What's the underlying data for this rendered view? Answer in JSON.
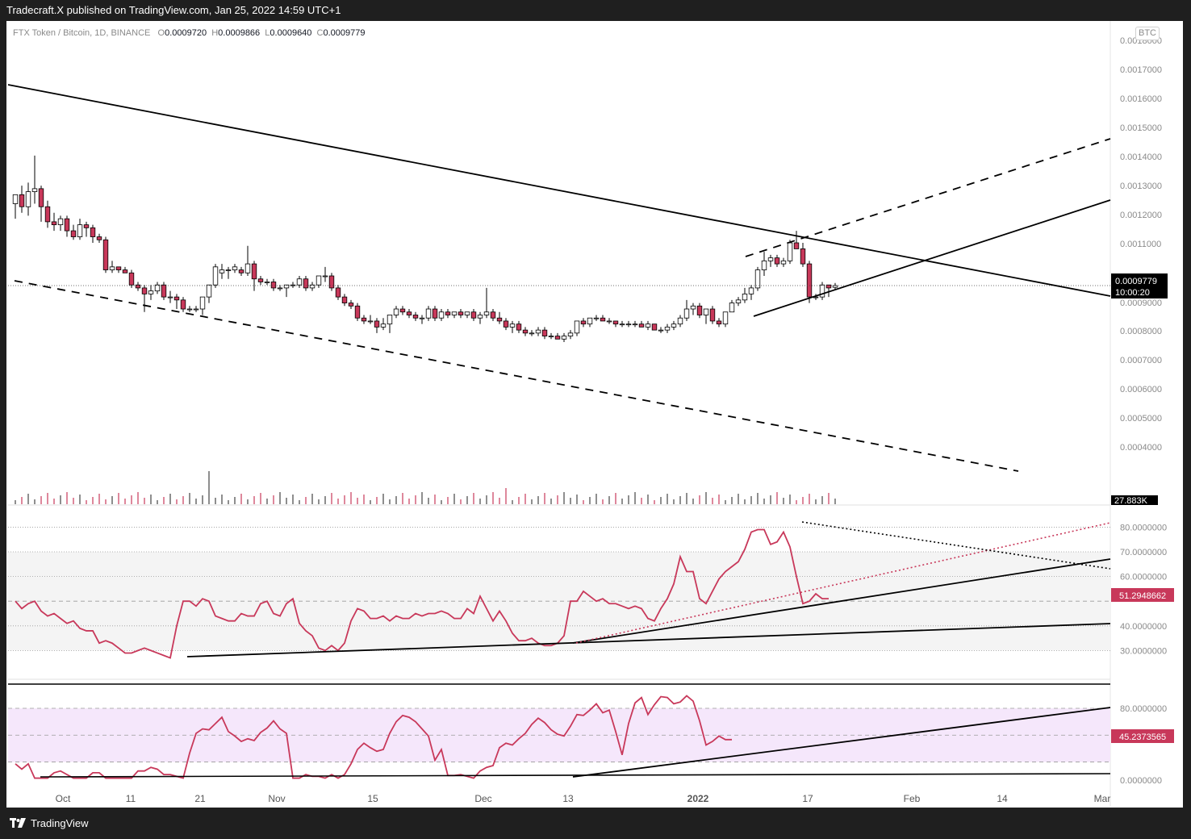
{
  "header": {
    "publisher_text": "Tradecraft.X published on TradingView.com, Jan 25, 2022 14:59 UTC+1"
  },
  "symbol_legend": {
    "title": "FTX Token / Bitcoin, 1D, BINANCE",
    "o_label": "O",
    "o_value": "0.0009720",
    "h_label": "H",
    "h_value": "0.0009866",
    "l_label": "L",
    "l_value": "0.0009640",
    "c_label": "C",
    "c_value": "0.0009779"
  },
  "currency_badge": "BTC",
  "footer": {
    "brand": "TradingView"
  },
  "colors": {
    "up_body": "#ffffff",
    "down_body": "#c8385a",
    "candle_outline": "#000000",
    "rsi_line": "#c8385a",
    "rsi_band": "#f4f4f4",
    "stoch_band": "#f5e7fb",
    "badge_bg": "#000000",
    "rsi_badge_bg": "#c8385a"
  },
  "chart_data": [
    {
      "type": "candlestick",
      "title": "FTX Token / Bitcoin, 1D, BINANCE",
      "x_tick_labels": [
        "Oct",
        "11",
        "21",
        "Nov",
        "15",
        "Dec",
        "13",
        "2022",
        "17",
        "Feb",
        "14",
        "Mar"
      ],
      "y_tick_labels": [
        "0.0018000",
        "0.0017000",
        "0.0016000",
        "0.0015000",
        "0.0014000",
        "0.0013000",
        "0.0012000",
        "0.0011000",
        "0.0009000",
        "0.0008000",
        "0.0007000",
        "0.0006000",
        "0.0005000",
        "0.0004000"
      ],
      "ylim": [
        0.00031,
        0.00182
      ],
      "bar_count": 129,
      "last_price_label": "0.0009779",
      "countdown_label": "10:00:20",
      "volume_label": "27.883K",
      "candles": [
        {
          "o": 0.00125,
          "h": 0.00128,
          "l": 0.0012,
          "c": 0.00128
        },
        {
          "o": 0.00128,
          "h": 0.00131,
          "l": 0.00122,
          "c": 0.00124
        },
        {
          "o": 0.00124,
          "h": 0.00132,
          "l": 0.00121,
          "c": 0.00129
        },
        {
          "o": 0.00129,
          "h": 0.00141,
          "l": 0.00125,
          "c": 0.0013
        },
        {
          "o": 0.0013,
          "h": 0.00131,
          "l": 0.00119,
          "c": 0.00124
        },
        {
          "o": 0.00124,
          "h": 0.00126,
          "l": 0.00117,
          "c": 0.00119
        },
        {
          "o": 0.00119,
          "h": 0.00122,
          "l": 0.00116,
          "c": 0.00118
        },
        {
          "o": 0.00118,
          "h": 0.00121,
          "l": 0.00116,
          "c": 0.0012
        },
        {
          "o": 0.0012,
          "h": 0.00121,
          "l": 0.00114,
          "c": 0.00116
        },
        {
          "o": 0.00116,
          "h": 0.00118,
          "l": 0.00113,
          "c": 0.00114
        },
        {
          "o": 0.00114,
          "h": 0.0012,
          "l": 0.00113,
          "c": 0.00118
        },
        {
          "o": 0.00118,
          "h": 0.00119,
          "l": 0.00114,
          "c": 0.00117
        },
        {
          "o": 0.00117,
          "h": 0.00118,
          "l": 0.00112,
          "c": 0.00114
        },
        {
          "o": 0.00114,
          "h": 0.00115,
          "l": 0.00112,
          "c": 0.00113
        },
        {
          "o": 0.00113,
          "h": 0.00114,
          "l": 0.00102,
          "c": 0.00103
        },
        {
          "o": 0.00103,
          "h": 0.00106,
          "l": 0.00102,
          "c": 0.00104
        },
        {
          "o": 0.00104,
          "h": 0.00104,
          "l": 0.00102,
          "c": 0.00103
        },
        {
          "o": 0.00103,
          "h": 0.00104,
          "l": 0.00102,
          "c": 0.00102
        },
        {
          "o": 0.00102,
          "h": 0.00103,
          "l": 0.00097,
          "c": 0.00098
        },
        {
          "o": 0.00098,
          "h": 0.00099,
          "l": 0.00096,
          "c": 0.00097
        },
        {
          "o": 0.00097,
          "h": 0.00098,
          "l": 0.00089,
          "c": 0.00095
        },
        {
          "o": 0.00095,
          "h": 0.00098,
          "l": 0.00093,
          "c": 0.00096
        },
        {
          "o": 0.00096,
          "h": 0.00099,
          "l": 0.00095,
          "c": 0.00098
        },
        {
          "o": 0.00098,
          "h": 0.00099,
          "l": 0.00093,
          "c": 0.00094
        },
        {
          "o": 0.00094,
          "h": 0.00096,
          "l": 0.00092,
          "c": 0.00094
        },
        {
          "o": 0.00094,
          "h": 0.00095,
          "l": 0.0009,
          "c": 0.00093
        },
        {
          "o": 0.00093,
          "h": 0.00094,
          "l": 0.00089,
          "c": 0.0009
        },
        {
          "o": 0.0009,
          "h": 0.00091,
          "l": 0.00089,
          "c": 0.0009
        },
        {
          "o": 0.0009,
          "h": 0.00091,
          "l": 0.00089,
          "c": 0.0009
        },
        {
          "o": 0.0009,
          "h": 0.00094,
          "l": 0.00088,
          "c": 0.00094
        },
        {
          "o": 0.00094,
          "h": 0.00098,
          "l": 0.00092,
          "c": 0.00098
        },
        {
          "o": 0.00098,
          "h": 0.00105,
          "l": 0.00097,
          "c": 0.00104
        },
        {
          "o": 0.00102,
          "h": 0.00105,
          "l": 0.001,
          "c": 0.00103
        },
        {
          "o": 0.00103,
          "h": 0.00104,
          "l": 0.001,
          "c": 0.00103
        },
        {
          "o": 0.00103,
          "h": 0.00105,
          "l": 0.00102,
          "c": 0.00104
        },
        {
          "o": 0.00103,
          "h": 0.00104,
          "l": 0.00101,
          "c": 0.00102
        },
        {
          "o": 0.00102,
          "h": 0.00111,
          "l": 0.00101,
          "c": 0.00105
        },
        {
          "o": 0.00105,
          "h": 0.00106,
          "l": 0.00096,
          "c": 0.001
        },
        {
          "o": 0.001,
          "h": 0.00101,
          "l": 0.00098,
          "c": 0.00099
        },
        {
          "o": 0.00099,
          "h": 0.001,
          "l": 0.00098,
          "c": 0.00099
        },
        {
          "o": 0.00099,
          "h": 0.001,
          "l": 0.00096,
          "c": 0.00097
        },
        {
          "o": 0.00097,
          "h": 0.00098,
          "l": 0.00096,
          "c": 0.00097
        },
        {
          "o": 0.00097,
          "h": 0.00098,
          "l": 0.00094,
          "c": 0.00098
        },
        {
          "o": 0.00098,
          "h": 0.00099,
          "l": 0.00097,
          "c": 0.00098
        },
        {
          "o": 0.00098,
          "h": 0.00101,
          "l": 0.00097,
          "c": 0.001
        },
        {
          "o": 0.001,
          "h": 0.00101,
          "l": 0.00096,
          "c": 0.00097
        },
        {
          "o": 0.00097,
          "h": 0.00099,
          "l": 0.00096,
          "c": 0.00098
        },
        {
          "o": 0.00098,
          "h": 0.00101,
          "l": 0.00097,
          "c": 0.00101
        },
        {
          "o": 0.00101,
          "h": 0.00104,
          "l": 0.00099,
          "c": 0.00101
        },
        {
          "o": 0.00101,
          "h": 0.00102,
          "l": 0.00096,
          "c": 0.00097
        },
        {
          "o": 0.00097,
          "h": 0.00098,
          "l": 0.00093,
          "c": 0.00094
        },
        {
          "o": 0.00094,
          "h": 0.00095,
          "l": 0.00091,
          "c": 0.00092
        },
        {
          "o": 0.00092,
          "h": 0.00093,
          "l": 0.0009,
          "c": 0.00091
        },
        {
          "o": 0.00091,
          "h": 0.00092,
          "l": 0.00086,
          "c": 0.00087
        },
        {
          "o": 0.00087,
          "h": 0.00088,
          "l": 0.00085,
          "c": 0.00086
        },
        {
          "o": 0.00086,
          "h": 0.00088,
          "l": 0.00085,
          "c": 0.00086
        },
        {
          "o": 0.00086,
          "h": 0.00087,
          "l": 0.00082,
          "c": 0.00084
        },
        {
          "o": 0.00084,
          "h": 0.00087,
          "l": 0.00083,
          "c": 0.00085
        },
        {
          "o": 0.00085,
          "h": 0.00088,
          "l": 0.00082,
          "c": 0.00088
        },
        {
          "o": 0.00088,
          "h": 0.00091,
          "l": 0.00087,
          "c": 0.0009
        },
        {
          "o": 0.0009,
          "h": 0.00091,
          "l": 0.00088,
          "c": 0.00089
        },
        {
          "o": 0.00089,
          "h": 0.0009,
          "l": 0.00087,
          "c": 0.00088
        },
        {
          "o": 0.00088,
          "h": 0.00089,
          "l": 0.00086,
          "c": 0.00087
        },
        {
          "o": 0.00087,
          "h": 0.00088,
          "l": 0.00085,
          "c": 0.00087
        },
        {
          "o": 0.00087,
          "h": 0.00091,
          "l": 0.00086,
          "c": 0.0009
        },
        {
          "o": 0.0009,
          "h": 0.00091,
          "l": 0.00086,
          "c": 0.00087
        },
        {
          "o": 0.00087,
          "h": 0.0009,
          "l": 0.00086,
          "c": 0.00089
        },
        {
          "o": 0.00089,
          "h": 0.0009,
          "l": 0.00087,
          "c": 0.00088
        },
        {
          "o": 0.00088,
          "h": 0.00089,
          "l": 0.00087,
          "c": 0.00089
        },
        {
          "o": 0.00089,
          "h": 0.0009,
          "l": 0.00087,
          "c": 0.00088
        },
        {
          "o": 0.00088,
          "h": 0.00089,
          "l": 0.00087,
          "c": 0.00089
        },
        {
          "o": 0.00089,
          "h": 0.0009,
          "l": 0.00086,
          "c": 0.00087
        },
        {
          "o": 0.00087,
          "h": 0.00089,
          "l": 0.00085,
          "c": 0.00088
        },
        {
          "o": 0.00088,
          "h": 0.00097,
          "l": 0.00087,
          "c": 0.00089
        },
        {
          "o": 0.00089,
          "h": 0.0009,
          "l": 0.00086,
          "c": 0.00087
        },
        {
          "o": 0.00087,
          "h": 0.00089,
          "l": 0.00085,
          "c": 0.00086
        },
        {
          "o": 0.00086,
          "h": 0.00087,
          "l": 0.00083,
          "c": 0.00084
        },
        {
          "o": 0.00084,
          "h": 0.00086,
          "l": 0.00082,
          "c": 0.00085
        },
        {
          "o": 0.00085,
          "h": 0.00086,
          "l": 0.00082,
          "c": 0.00083
        },
        {
          "o": 0.00083,
          "h": 0.00084,
          "l": 0.00081,
          "c": 0.00082
        },
        {
          "o": 0.00082,
          "h": 0.00083,
          "l": 0.00081,
          "c": 0.00082
        },
        {
          "o": 0.00082,
          "h": 0.00084,
          "l": 0.00081,
          "c": 0.00083
        },
        {
          "o": 0.00083,
          "h": 0.00084,
          "l": 0.0008,
          "c": 0.00081
        },
        {
          "o": 0.00081,
          "h": 0.00082,
          "l": 0.0008,
          "c": 0.00081
        },
        {
          "o": 0.00081,
          "h": 0.00082,
          "l": 0.0008,
          "c": 0.0008
        },
        {
          "o": 0.0008,
          "h": 0.00082,
          "l": 0.00079,
          "c": 0.00081
        },
        {
          "o": 0.00081,
          "h": 0.00083,
          "l": 0.0008,
          "c": 0.00082
        },
        {
          "o": 0.00082,
          "h": 0.00086,
          "l": 0.00081,
          "c": 0.00086
        },
        {
          "o": 0.00086,
          "h": 0.00087,
          "l": 0.00084,
          "c": 0.00085
        },
        {
          "o": 0.00085,
          "h": 0.00087,
          "l": 0.00084,
          "c": 0.00087
        },
        {
          "o": 0.00087,
          "h": 0.00088,
          "l": 0.00086,
          "c": 0.00087
        },
        {
          "o": 0.00087,
          "h": 0.00088,
          "l": 0.00086,
          "c": 0.00086
        },
        {
          "o": 0.00086,
          "h": 0.00087,
          "l": 0.00085,
          "c": 0.00086
        },
        {
          "o": 0.00086,
          "h": 0.00086,
          "l": 0.00084,
          "c": 0.00085
        },
        {
          "o": 0.00085,
          "h": 0.00086,
          "l": 0.00084,
          "c": 0.00085
        },
        {
          "o": 0.00085,
          "h": 0.00086,
          "l": 0.00084,
          "c": 0.00085
        },
        {
          "o": 0.00085,
          "h": 0.00086,
          "l": 0.00084,
          "c": 0.00085
        },
        {
          "o": 0.00085,
          "h": 0.00086,
          "l": 0.00084,
          "c": 0.00084
        },
        {
          "o": 0.00084,
          "h": 0.00086,
          "l": 0.00083,
          "c": 0.00085
        },
        {
          "o": 0.00085,
          "h": 0.00085,
          "l": 0.00083,
          "c": 0.00083
        },
        {
          "o": 0.00083,
          "h": 0.00084,
          "l": 0.00082,
          "c": 0.00083
        },
        {
          "o": 0.00083,
          "h": 0.00085,
          "l": 0.00082,
          "c": 0.00084
        },
        {
          "o": 0.00084,
          "h": 0.00086,
          "l": 0.00083,
          "c": 0.00085
        },
        {
          "o": 0.00085,
          "h": 0.00088,
          "l": 0.00084,
          "c": 0.00087
        },
        {
          "o": 0.00087,
          "h": 0.00093,
          "l": 0.00086,
          "c": 0.0009
        },
        {
          "o": 0.0009,
          "h": 0.00092,
          "l": 0.00088,
          "c": 0.00091
        },
        {
          "o": 0.00091,
          "h": 0.00092,
          "l": 0.00087,
          "c": 0.00088
        },
        {
          "o": 0.00088,
          "h": 0.0009,
          "l": 0.00085,
          "c": 0.0009
        },
        {
          "o": 0.0009,
          "h": 0.00091,
          "l": 0.00085,
          "c": 0.00086
        },
        {
          "o": 0.00086,
          "h": 0.00087,
          "l": 0.00084,
          "c": 0.00085
        },
        {
          "o": 0.00085,
          "h": 0.00089,
          "l": 0.00084,
          "c": 0.00089
        },
        {
          "o": 0.00089,
          "h": 0.00093,
          "l": 0.00089,
          "c": 0.00092
        },
        {
          "o": 0.00092,
          "h": 0.00094,
          "l": 0.00091,
          "c": 0.00093
        },
        {
          "o": 0.00093,
          "h": 0.00097,
          "l": 0.00092,
          "c": 0.00095
        },
        {
          "o": 0.00095,
          "h": 0.00098,
          "l": 0.00093,
          "c": 0.00097
        },
        {
          "o": 0.00097,
          "h": 0.00104,
          "l": 0.00096,
          "c": 0.00103
        },
        {
          "o": 0.00103,
          "h": 0.00109,
          "l": 0.00101,
          "c": 0.00106
        },
        {
          "o": 0.00106,
          "h": 0.00108,
          "l": 0.00104,
          "c": 0.00107
        },
        {
          "o": 0.00107,
          "h": 0.00108,
          "l": 0.00104,
          "c": 0.00105
        },
        {
          "o": 0.00105,
          "h": 0.00107,
          "l": 0.00104,
          "c": 0.00106
        },
        {
          "o": 0.00106,
          "h": 0.00113,
          "l": 0.00105,
          "c": 0.00112
        },
        {
          "o": 0.00112,
          "h": 0.00116,
          "l": 0.0011,
          "c": 0.0011
        },
        {
          "o": 0.0011,
          "h": 0.00112,
          "l": 0.00104,
          "c": 0.00105
        },
        {
          "o": 0.00105,
          "h": 0.00106,
          "l": 0.00092,
          "c": 0.00094
        },
        {
          "o": 0.00094,
          "h": 0.00095,
          "l": 0.00093,
          "c": 0.00094
        },
        {
          "o": 0.00094,
          "h": 0.00099,
          "l": 0.00093,
          "c": 0.00098
        },
        {
          "o": 0.00098,
          "h": 0.00098,
          "l": 0.00094,
          "c": 0.00097
        },
        {
          "o": 0.000972,
          "h": 0.0009866,
          "l": 0.000964,
          "c": 0.0009779
        }
      ]
    },
    {
      "type": "line",
      "title": "RSI",
      "y_tick_labels": [
        "80.0000000",
        "70.0000000",
        "60.0000000",
        "40.0000000",
        "30.0000000"
      ],
      "ylim": [
        20,
        87
      ],
      "bands": {
        "upper": 70,
        "middle": 50,
        "lower": 30
      },
      "last_value_label": "51.2948662",
      "values": [
        50,
        47,
        49,
        50,
        46,
        44,
        45,
        43,
        41,
        42,
        39,
        38,
        38,
        33,
        34,
        33,
        31,
        29,
        29,
        30,
        31,
        30,
        29,
        28,
        27,
        40,
        50,
        50,
        48,
        51,
        50,
        44,
        43,
        42,
        42,
        45,
        44,
        44,
        49,
        50,
        45,
        44,
        49,
        51,
        41,
        38,
        36,
        31,
        30,
        32,
        30,
        33,
        42,
        47,
        46,
        43,
        43,
        44,
        42,
        44,
        43,
        43,
        45,
        44,
        45,
        45,
        46,
        45,
        43,
        43,
        47,
        45,
        52,
        47,
        42,
        46,
        42,
        37,
        34,
        34,
        35,
        33,
        32,
        32,
        33,
        36,
        50,
        50,
        54,
        52,
        50,
        51,
        49,
        49,
        48,
        47,
        48,
        47,
        43,
        42,
        47,
        51,
        57,
        68,
        62,
        62,
        51,
        49,
        54,
        59,
        62,
        64,
        66,
        71,
        78,
        79,
        79,
        73,
        74,
        78,
        72,
        60,
        49,
        50,
        53,
        51,
        51
      ]
    },
    {
      "type": "line",
      "title": "Stochastic RSI",
      "y_tick_labels": [
        "80.0000000",
        "0.0000000"
      ],
      "ylim": [
        -2,
        107
      ],
      "bands": {
        "upper": 80,
        "middle": 50,
        "lower": 20
      },
      "last_value_label": "45.2373565",
      "values": [
        18,
        12,
        18,
        2,
        2,
        2,
        8,
        10,
        6,
        2,
        2,
        2,
        8,
        8,
        2,
        2,
        2,
        2,
        2,
        10,
        10,
        14,
        12,
        6,
        6,
        4,
        2,
        30,
        52,
        57,
        56,
        63,
        70,
        54,
        49,
        43,
        46,
        44,
        53,
        58,
        66,
        57,
        52,
        2,
        2,
        6,
        4,
        4,
        2,
        6,
        2,
        6,
        18,
        34,
        41,
        36,
        32,
        34,
        52,
        65,
        72,
        70,
        65,
        57,
        49,
        22,
        34,
        5,
        5,
        6,
        4,
        2,
        10,
        14,
        16,
        36,
        41,
        39,
        46,
        52,
        62,
        69,
        64,
        56,
        51,
        49,
        60,
        73,
        72,
        78,
        85,
        75,
        78,
        54,
        28,
        63,
        86,
        92,
        73,
        84,
        93,
        92,
        85,
        87,
        94,
        88,
        66,
        39,
        43,
        49,
        45,
        45
      ]
    }
  ]
}
